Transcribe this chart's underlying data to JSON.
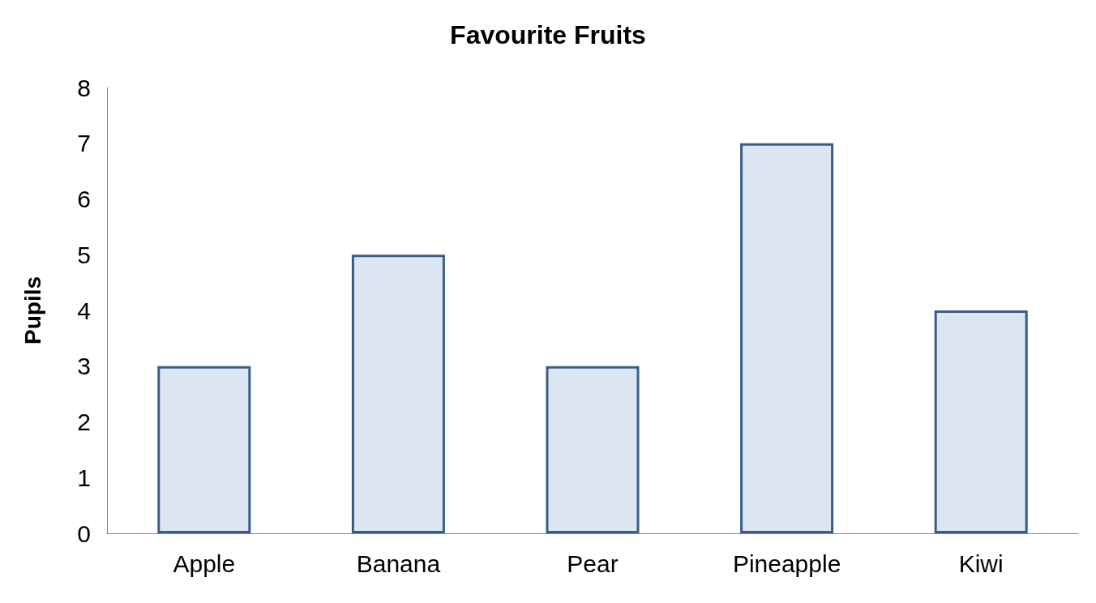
{
  "chart_data": {
    "type": "bar",
    "title": "Favourite Fruits",
    "ylabel": "Pupils",
    "categories": [
      "Apple",
      "Banana",
      "Pear",
      "Pineapple",
      "Kiwi"
    ],
    "values": [
      3,
      5,
      3,
      7,
      4
    ],
    "color": "#dce6f2",
    "ylim": [
      0,
      8
    ],
    "yticks": [
      0,
      1,
      2,
      3,
      4,
      5,
      6,
      7,
      8
    ],
    "grid": false
  }
}
